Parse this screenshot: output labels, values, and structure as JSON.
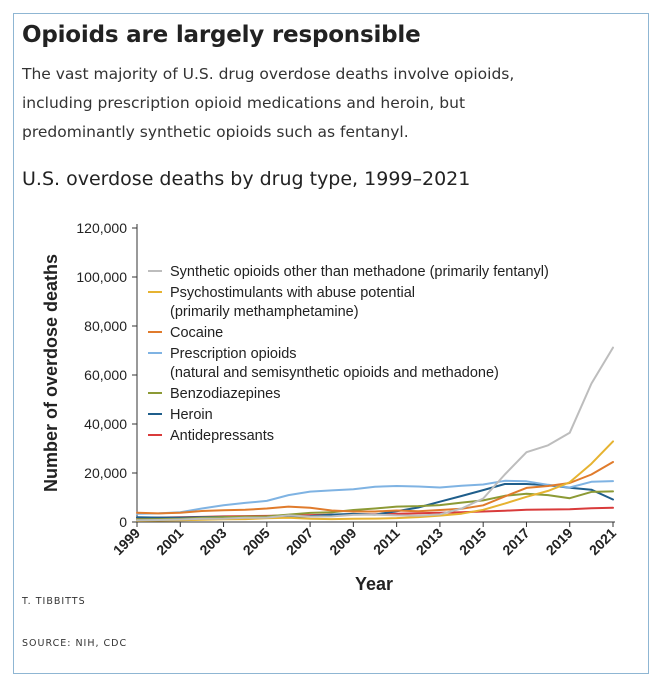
{
  "card": {
    "title": "Opioids are largely responsible",
    "description": "The vast majority of U.S. drug overdose deaths involve opioids, including prescription opioid medications and heroin, but predominantly synthetic opioids such as fentanyl.",
    "credit": "T. TIBBITTS",
    "source": "SOURCE: NIH, CDC"
  },
  "chart_data": {
    "type": "line",
    "title": "U.S. overdose deaths by drug type, 1999–2021",
    "xlabel": "Year",
    "ylabel": "Number of overdose deaths",
    "xlim": [
      1999,
      2021
    ],
    "ylim": [
      0,
      120000
    ],
    "x_ticks": [
      "1999",
      "2001",
      "2003",
      "2005",
      "2007",
      "2009",
      "2011",
      "2013",
      "2015",
      "2017",
      "2019",
      "2021"
    ],
    "y_ticks": [
      {
        "value": 0,
        "label": "0"
      },
      {
        "value": 20000,
        "label": "20,000"
      },
      {
        "value": 40000,
        "label": "40,000"
      },
      {
        "value": 60000,
        "label": "60,000"
      },
      {
        "value": 80000,
        "label": "80,000"
      },
      {
        "value": 100000,
        "label": "100,000"
      },
      {
        "value": 120000,
        "label": "120,000"
      }
    ],
    "legend_position": "top-left inside plot",
    "grid": false,
    "x": [
      1999,
      2000,
      2001,
      2002,
      2003,
      2004,
      2005,
      2006,
      2007,
      2008,
      2009,
      2010,
      2011,
      2012,
      2013,
      2014,
      2015,
      2016,
      2017,
      2018,
      2019,
      2020,
      2021
    ],
    "series": [
      {
        "name": "Synthetic opioids other than methadone (primarily fentanyl)",
        "color": "#bdbdbd",
        "values": [
          700,
          800,
          1000,
          1300,
          1400,
          1700,
          1800,
          2700,
          2200,
          2300,
          2900,
          3000,
          2700,
          2600,
          3100,
          5500,
          9600,
          19400,
          28500,
          31300,
          36400,
          56500,
          71200
        ]
      },
      {
        "name": "Psychostimulants with abuse potential\n(primarily methamphetamine)",
        "color": "#e6b331",
        "values": [
          500,
          600,
          700,
          900,
          1100,
          1200,
          1500,
          1700,
          1300,
          1200,
          1300,
          1400,
          1600,
          2000,
          2600,
          3400,
          5000,
          7500,
          10300,
          12700,
          16200,
          23800,
          32900
        ]
      },
      {
        "name": "Cocaine",
        "color": "#e07b2c",
        "values": [
          3800,
          3500,
          3800,
          4500,
          4800,
          5000,
          5500,
          6300,
          5800,
          4700,
          4300,
          4300,
          4700,
          4400,
          4900,
          5400,
          6800,
          10400,
          13900,
          14700,
          15900,
          19400,
          24500
        ]
      },
      {
        "name": "Prescription opioids\n(natural and semisynthetic opioids and methadone)",
        "color": "#7fb3e3",
        "values": [
          3400,
          3500,
          4000,
          5500,
          6800,
          7800,
          8600,
          11000,
          12400,
          12900,
          13400,
          14400,
          14700,
          14500,
          14100,
          14800,
          15300,
          16800,
          16600,
          15200,
          14100,
          16400,
          16700
        ]
      },
      {
        "name": "Benzodiazepines",
        "color": "#8c9a35",
        "values": [
          1100,
          1200,
          1300,
          1700,
          2000,
          2200,
          2300,
          3000,
          3700,
          4000,
          4900,
          5500,
          6300,
          6500,
          6900,
          7900,
          8800,
          10700,
          11500,
          11000,
          9700,
          12300,
          12500
        ]
      },
      {
        "name": "Heroin",
        "color": "#1f5e8b",
        "values": [
          1900,
          1800,
          1800,
          2000,
          2100,
          1900,
          2000,
          2100,
          2400,
          3000,
          3300,
          3000,
          4400,
          5900,
          8300,
          10600,
          13000,
          15500,
          15500,
          15000,
          14000,
          13200,
          9200
        ]
      },
      {
        "name": "Antidepressants",
        "color": "#d93b3b",
        "values": [
          1700,
          1800,
          1900,
          2100,
          2300,
          2400,
          2500,
          2700,
          2800,
          3000,
          3100,
          3200,
          3400,
          3600,
          3800,
          4000,
          4300,
          4600,
          5000,
          5100,
          5200,
          5600,
          5800
        ]
      }
    ]
  }
}
